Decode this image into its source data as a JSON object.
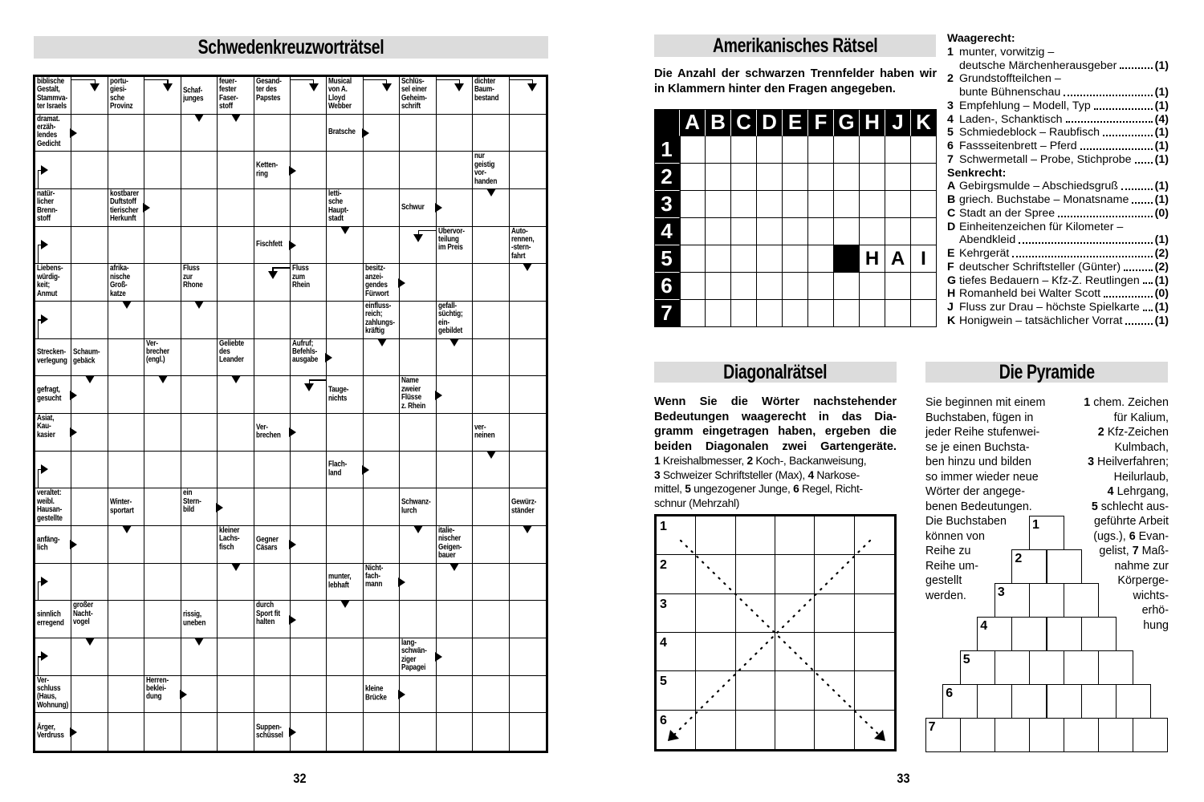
{
  "left_page": {
    "title": "Schwedenkreuzworträtsel",
    "page_number": "32"
  },
  "swedish": {
    "columns": 14,
    "rows": [
      {
        "0": {
          "text": "biblische\nGestalt,\nStammva-\nter Israels"
        },
        "1": {
          "arrow": "corner-down"
        },
        "2": {
          "text": "portu-\ngiesi-\nsche\nProvinz"
        },
        "3": {
          "arrow": "corner-down"
        },
        "4": {
          "text": "Schaf-\njunges",
          "arrow": "down"
        },
        "5": {
          "text": "feuer-\nfester\nFaser-\nstoff",
          "arrow": "down"
        },
        "6": {
          "text": "Gesand-\nter des\nPapstes"
        },
        "7": {
          "arrow": "corner-down"
        },
        "8": {
          "text": "Musical\nvon A.\nLloyd\nWebber"
        },
        "9": {
          "arrow": "corner-down"
        },
        "10": {
          "text": "Schlüs-\nsel einer\nGeheim-\nschrift"
        },
        "11": {
          "arrow": "corner-down"
        },
        "12": {
          "text": "dichter\nBaum-\nbestand"
        },
        "13": {
          "arrow": "corner-down"
        }
      },
      {
        "0": {
          "text": "dramat.\nerzäh-\nlendes\nGedicht",
          "arrow": "right"
        },
        "8": {
          "text": "Bratsche",
          "arrow": "right"
        }
      },
      {
        "0": {
          "arrow": "corner-right"
        },
        "6": {
          "text": "Ketten-\nring",
          "arrow": "right"
        },
        "12": {
          "text": "nur\ngeistig\nvor-\nhanden",
          "arrow": "down"
        }
      },
      {
        "0": {
          "text": "natür-\nlicher\nBrenn-\nstoff"
        },
        "2": {
          "text": "kostbarer\nDuftstoff\ntierischer\nHerkunft",
          "arrow": "right"
        },
        "8": {
          "text": "letti-\nsche\nHaupt-\nstadt",
          "arrow": "down"
        },
        "10": {
          "text": "Schwur",
          "arrow": "right"
        }
      },
      {
        "0": {
          "arrow": "corner-right"
        },
        "6": {
          "text": "Fischfett",
          "arrow": "right"
        },
        "10": {
          "arrow": "corner-down-left"
        },
        "11": {
          "text": "Übervor-\nteilung\nim Preis"
        },
        "13": {
          "text": "Auto-\nrennen,\n-stern-\nfahrt",
          "arrow": "down"
        }
      },
      {
        "0": {
          "text": "Liebens-\nwürdig-\nkeit;\nAnmut"
        },
        "2": {
          "text": "afrika-\nnische\nGroß-\nkatze",
          "arrow": "down"
        },
        "4": {
          "text": "Fluss\nzur\nRhone",
          "arrow": "down"
        },
        "6": {
          "arrow": "corner-down-left"
        },
        "7": {
          "text": "Fluss\nzum\nRhein"
        },
        "9": {
          "text": "besitz-\nanzei-\ngendes\nFürwort",
          "arrow": "right"
        }
      },
      {
        "0": {
          "arrow": "corner-right"
        },
        "9": {
          "text": "einfluss-\nreich;\nzahlungs-\nkräftig",
          "arrow": "down"
        },
        "11": {
          "text": "gefall-\nsüchtig;\nein-\ngebildet",
          "arrow": "down"
        }
      },
      {
        "0": {
          "text": "Strecken-\nverlegung"
        },
        "1": {
          "text": "Schaum-\ngebäck",
          "arrow": "down"
        },
        "3": {
          "text": "Ver-\nbrecher\n(engl.)",
          "arrow": "down"
        },
        "5": {
          "text": "Geliebte\ndes\nLeander",
          "arrow": "down"
        },
        "7": {
          "text": "Aufruf;\nBefehls-\nausgabe",
          "arrow": "right"
        }
      },
      {
        "0": {
          "text": "gefragt,\ngesucht",
          "arrow": "right"
        },
        "7": {
          "arrow": "corner-down-left"
        },
        "8": {
          "text": "Tauge-\nnichts"
        },
        "10": {
          "text": "Name\nzweier\nFlüsse\nz. Rhein",
          "arrow": "right"
        }
      },
      {
        "0": {
          "text": "Asiat,\nKau-\nkasier",
          "arrow": "right"
        },
        "6": {
          "text": "Ver-\nbrechen",
          "arrow": "right"
        },
        "12": {
          "text": "ver-\nneinen",
          "arrow": "down"
        }
      },
      {
        "0": {
          "arrow": "corner-right"
        },
        "8": {
          "text": "Flach-\nland",
          "arrow": "right"
        }
      },
      {
        "0": {
          "text": "veraltet:\nweibl.\nHausan-\ngestellte"
        },
        "2": {
          "text": "Winter-\nsportart",
          "arrow": "down"
        },
        "4": {
          "text": "ein\nStern-\nbild",
          "arrow": "right"
        },
        "10": {
          "text": "Schwanz-\nlurch",
          "arrow": "down"
        },
        "13": {
          "text": "Gewürz-\nständer",
          "arrow": "down"
        }
      },
      {
        "0": {
          "text": "anfäng-\nlich",
          "arrow": "right"
        },
        "5": {
          "text": "kleiner\nLachs-\nfisch",
          "arrow": "down"
        },
        "6": {
          "text": "Gegner\nCäsars",
          "arrow": "right"
        },
        "11": {
          "text": "italie-\nnischer\nGeigen-\nbauer",
          "arrow": "down"
        }
      },
      {
        "0": {
          "arrow": "corner-right"
        },
        "8": {
          "text": "munter,\nlebhaft",
          "arrow": "down"
        },
        "9": {
          "text": "Nicht-\nfach-\nmann",
          "arrow": "right"
        }
      },
      {
        "0": {
          "text": "sinnlich\nerregend"
        },
        "1": {
          "text": "großer\nNacht-\nvogel",
          "arrow": "down"
        },
        "4": {
          "text": "rissig,\nuneben",
          "arrow": "down"
        },
        "6": {
          "text": "durch\nSport fit\nhalten",
          "arrow": "right"
        }
      },
      {
        "0": {
          "arrow": "corner-right"
        },
        "10": {
          "text": "lang-\nschwän-\nziger\nPapagei",
          "arrow": "right"
        }
      },
      {
        "0": {
          "text": "Ver-\nschluss\n(Haus,\nWohnung)"
        },
        "3": {
          "text": "Herren-\nbeklei-\ndung",
          "arrow": "right"
        },
        "9": {
          "text": "kleine\nBrücke",
          "arrow": "right"
        }
      },
      {
        "0": {
          "text": "Ärger,\nVerdruss",
          "arrow": "right"
        },
        "6": {
          "text": "Suppen-\nschüssel",
          "arrow": "right"
        }
      }
    ]
  },
  "right_page": {
    "page_number": "33"
  },
  "american": {
    "title": "Amerikanisches Rätsel",
    "intro": "Die Anzahl der schwarzen Trennfelder haben wir in Klammern hinter den Fragen angegeben.",
    "column_letters": [
      "A",
      "B",
      "C",
      "D",
      "E",
      "F",
      "G",
      "H",
      "J",
      "K"
    ],
    "rows": [
      {
        "num": "1",
        "cells": [
          "",
          "",
          "",
          "",
          "",
          "",
          "",
          "",
          "",
          ""
        ]
      },
      {
        "num": "2",
        "cells": [
          "",
          "",
          "",
          "",
          "",
          "",
          "",
          "",
          "",
          ""
        ]
      },
      {
        "num": "3",
        "cells": [
          "",
          "",
          "",
          "",
          "",
          "",
          "",
          "",
          "",
          ""
        ]
      },
      {
        "num": "4",
        "cells": [
          "",
          "",
          "",
          "",
          "",
          "",
          "",
          "",
          "",
          ""
        ]
      },
      {
        "num": "5",
        "cells": [
          "",
          "",
          "",
          "",
          "",
          "",
          "#",
          "H",
          "A",
          "I"
        ]
      },
      {
        "num": "6",
        "cells": [
          "",
          "",
          "",
          "",
          "",
          "",
          "",
          "",
          "",
          ""
        ]
      },
      {
        "num": "7",
        "cells": [
          "",
          "",
          "",
          "",
          "",
          "",
          "",
          "",
          "",
          ""
        ]
      }
    ],
    "across_heading": "Waagerecht:",
    "across": [
      {
        "key": "1",
        "lines": [
          "munter, vorwitzig –",
          "deutsche Märchenherausgeber"
        ],
        "count": "(1)"
      },
      {
        "key": "2",
        "lines": [
          "Grundstoffteilchen –",
          "bunte Bühnenschau"
        ],
        "count": "(1)"
      },
      {
        "key": "3",
        "lines": [
          "Empfehlung – Modell, Typ"
        ],
        "count": "(1)"
      },
      {
        "key": "4",
        "lines": [
          "Laden-, Schanktisch"
        ],
        "count": "(4)"
      },
      {
        "key": "5",
        "lines": [
          "Schmiedeblock – Raubfisch"
        ],
        "count": "(1)"
      },
      {
        "key": "6",
        "lines": [
          "Fassseitenbrett – Pferd"
        ],
        "count": "(1)"
      },
      {
        "key": "7",
        "lines": [
          "Schwermetall – Probe, Stichprobe"
        ],
        "count": "(1)"
      }
    ],
    "down_heading": "Senkrecht:",
    "down": [
      {
        "key": "A",
        "lines": [
          "Gebirgsmulde – Abschiedsgruß"
        ],
        "count": "(1)"
      },
      {
        "key": "B",
        "lines": [
          "griech. Buchstabe – Monatsname"
        ],
        "count": "(1)"
      },
      {
        "key": "C",
        "lines": [
          "Stadt an der Spree"
        ],
        "count": "(0)"
      },
      {
        "key": "D",
        "lines": [
          "Einheitenzeichen für Kilometer –",
          "Abendkleid"
        ],
        "count": "(1)"
      },
      {
        "key": "E",
        "lines": [
          "Kehrgerät"
        ],
        "count": "(2)"
      },
      {
        "key": "F",
        "lines": [
          "deutscher Schriftsteller (Günter)"
        ],
        "count": "(2)"
      },
      {
        "key": "G",
        "lines": [
          "tiefes Bedauern – Kfz-Z. Reutlingen"
        ],
        "count": "(1)"
      },
      {
        "key": "H",
        "lines": [
          "Romanheld bei Walter Scott"
        ],
        "count": "(0)"
      },
      {
        "key": "J",
        "lines": [
          "Fluss zur Drau – höchste Spielkarte"
        ],
        "count": "(1)"
      },
      {
        "key": "K",
        "lines": [
          "Honigwein – tatsächlicher Vorrat"
        ],
        "count": "(1)"
      }
    ]
  },
  "diagonal": {
    "title": "Diagonalrätsel",
    "intro_lines": [
      "Wenn Sie die Wörter nachstehender",
      "Bedeutungen waagerecht in das Dia-",
      "gramm eingetragen haben, ergeben die",
      "beiden Diagonalen zwei Gartengeräte."
    ],
    "clue_lines": [
      [
        {
          "b": "1"
        },
        {
          "t": " Kreishalbmesser, "
        },
        {
          "b": "2"
        },
        {
          "t": " Koch-, Backanweisung,"
        }
      ],
      [
        {
          "b": "3"
        },
        {
          "t": " Schweizer Schriftsteller (Max), "
        },
        {
          "b": "4"
        },
        {
          "t": " Narkose-"
        }
      ],
      [
        {
          "t": "mittel, "
        },
        {
          "b": "5"
        },
        {
          "t": " ungezogener Junge, "
        },
        {
          "b": "6"
        },
        {
          "t": " Regel, Richt-"
        }
      ],
      [
        {
          "t": "schnur (Mehrzahl)"
        }
      ]
    ],
    "row_numbers": [
      "1",
      "2",
      "3",
      "4",
      "5",
      "6"
    ]
  },
  "pyramid": {
    "title": "Die Pyramide",
    "left_lines": [
      "Sie beginnen mit einem",
      "Buchstaben, fügen in",
      "jeder Reihe stufenwei-",
      "se je einen Buchsta-",
      "ben hinzu und bilden",
      "so immer wieder neue",
      "Wörter der angege-",
      "benen Bedeutungen.",
      "Die Buchstaben",
      "können von",
      "Reihe zu",
      "Reihe um-",
      "gestellt",
      "werden."
    ],
    "right_lines": [
      [
        {
          "b": "1"
        },
        {
          "t": " chem. Zeichen"
        }
      ],
      [
        {
          "t": "für Kalium,"
        }
      ],
      [
        {
          "b": "2"
        },
        {
          "t": " Kfz-Zeichen"
        }
      ],
      [
        {
          "t": "Kulmbach,"
        }
      ],
      [
        {
          "b": "3"
        },
        {
          "t": " Heilverfahren;"
        }
      ],
      [
        {
          "t": "Heilurlaub,"
        }
      ],
      [
        {
          "b": "4"
        },
        {
          "t": " Lehrgang,"
        }
      ],
      [
        {
          "b": "5"
        },
        {
          "t": " schlecht aus-"
        }
      ],
      [
        {
          "t": "geführte Arbeit"
        }
      ],
      [
        {
          "t": "(ugs.), "
        },
        {
          "b": "6"
        },
        {
          "t": " Evan-"
        }
      ],
      [
        {
          "t": "gelist, "
        },
        {
          "b": "7"
        },
        {
          "t": " Maß-"
        }
      ],
      [
        {
          "t": "nahme zur"
        }
      ],
      [
        {
          "t": "Körperge-"
        }
      ],
      [
        {
          "t": "wichts-"
        }
      ],
      [
        {
          "t": "erhö-"
        }
      ],
      [
        {
          "t": "hung"
        }
      ]
    ],
    "row_numbers": [
      "1",
      "2",
      "3",
      "4",
      "5",
      "6",
      "7"
    ]
  }
}
